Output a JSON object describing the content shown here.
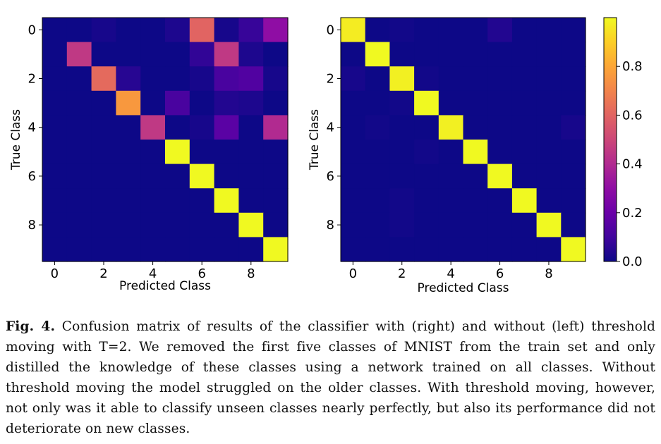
{
  "chart_data": [
    {
      "type": "heatmap",
      "panel": "left",
      "xlabel": "Predicted Class",
      "ylabel": "True Class",
      "x_ticks": [
        "0",
        "2",
        "4",
        "6",
        "8"
      ],
      "y_ticks": [
        "0",
        "2",
        "4",
        "6",
        "8"
      ],
      "rows": 10,
      "cols": 10,
      "values": [
        [
          0.0,
          0.0,
          0.02,
          0.0,
          0.0,
          0.03,
          0.6,
          0.02,
          0.08,
          0.3
        ],
        [
          0.0,
          0.45,
          0.0,
          0.0,
          0.0,
          0.0,
          0.07,
          0.45,
          0.03,
          0.0
        ],
        [
          0.0,
          0.0,
          0.62,
          0.05,
          0.0,
          0.0,
          0.02,
          0.12,
          0.14,
          0.02
        ],
        [
          0.0,
          0.0,
          0.0,
          0.76,
          0.0,
          0.12,
          0.0,
          0.04,
          0.03,
          0.0
        ],
        [
          0.0,
          0.0,
          0.0,
          0.0,
          0.45,
          0.0,
          0.02,
          0.16,
          0.0,
          0.4
        ],
        [
          0.0,
          0.0,
          0.0,
          0.0,
          0.0,
          1.0,
          0.0,
          0.0,
          0.0,
          0.0
        ],
        [
          0.0,
          0.0,
          0.0,
          0.0,
          0.0,
          0.0,
          1.0,
          0.0,
          0.0,
          0.0
        ],
        [
          0.0,
          0.0,
          0.0,
          0.0,
          0.0,
          0.0,
          0.0,
          1.0,
          0.0,
          0.0
        ],
        [
          0.0,
          0.0,
          0.0,
          0.0,
          0.0,
          0.0,
          0.0,
          0.0,
          1.0,
          0.0
        ],
        [
          0.0,
          0.0,
          0.0,
          0.0,
          0.0,
          0.0,
          0.0,
          0.0,
          0.0,
          1.0
        ]
      ]
    },
    {
      "type": "heatmap",
      "panel": "right",
      "xlabel": "Predicted Class",
      "ylabel": "True Class",
      "x_ticks": [
        "0",
        "2",
        "4",
        "6",
        "8"
      ],
      "y_ticks": [
        "0",
        "2",
        "4",
        "6",
        "8"
      ],
      "rows": 10,
      "cols": 10,
      "values": [
        [
          0.97,
          0.0,
          0.01,
          0.0,
          0.0,
          0.0,
          0.04,
          0.0,
          0.0,
          0.0
        ],
        [
          0.0,
          1.0,
          0.0,
          0.0,
          0.0,
          0.0,
          0.0,
          0.0,
          0.0,
          0.0
        ],
        [
          0.02,
          0.0,
          0.98,
          0.01,
          0.0,
          0.0,
          0.0,
          0.0,
          0.0,
          0.0
        ],
        [
          0.0,
          0.0,
          0.01,
          1.0,
          0.0,
          0.0,
          0.0,
          0.0,
          0.0,
          0.0
        ],
        [
          0.0,
          0.01,
          0.0,
          0.0,
          0.98,
          0.0,
          0.0,
          0.0,
          0.0,
          0.02
        ],
        [
          0.0,
          0.0,
          0.0,
          0.01,
          0.0,
          1.0,
          0.0,
          0.0,
          0.0,
          0.0
        ],
        [
          0.0,
          0.0,
          0.0,
          0.0,
          0.0,
          0.0,
          1.0,
          0.0,
          0.0,
          0.0
        ],
        [
          0.0,
          0.0,
          0.01,
          0.0,
          0.0,
          0.0,
          0.0,
          1.0,
          0.0,
          0.0
        ],
        [
          0.0,
          0.0,
          0.01,
          0.0,
          0.0,
          0.0,
          0.0,
          0.0,
          1.0,
          0.0
        ],
        [
          0.0,
          0.0,
          0.0,
          0.0,
          0.0,
          0.0,
          0.0,
          0.0,
          0.0,
          1.0
        ]
      ]
    }
  ],
  "colorbar": {
    "colormap": "plasma",
    "vmin": 0.0,
    "vmax": 1.0,
    "ticks": [
      0.0,
      0.2,
      0.4,
      0.6,
      0.8
    ],
    "tick_labels": [
      "0.0",
      "0.2",
      "0.4",
      "0.6",
      "0.8"
    ]
  },
  "caption": {
    "figure_label": "Fig. 4.",
    "text": "Confusion matrix of results of the classifier with (right) and without (left) threshold moving with T=2. We removed the first five classes of MNIST from the train set and only distilled the knowledge of these classes using a network trained on all classes. Without threshold moving the model struggled on the older classes. With threshold moving, however, not only was it able to classify unseen classes nearly perfectly, but also its performance did not deteriorate on new classes."
  }
}
